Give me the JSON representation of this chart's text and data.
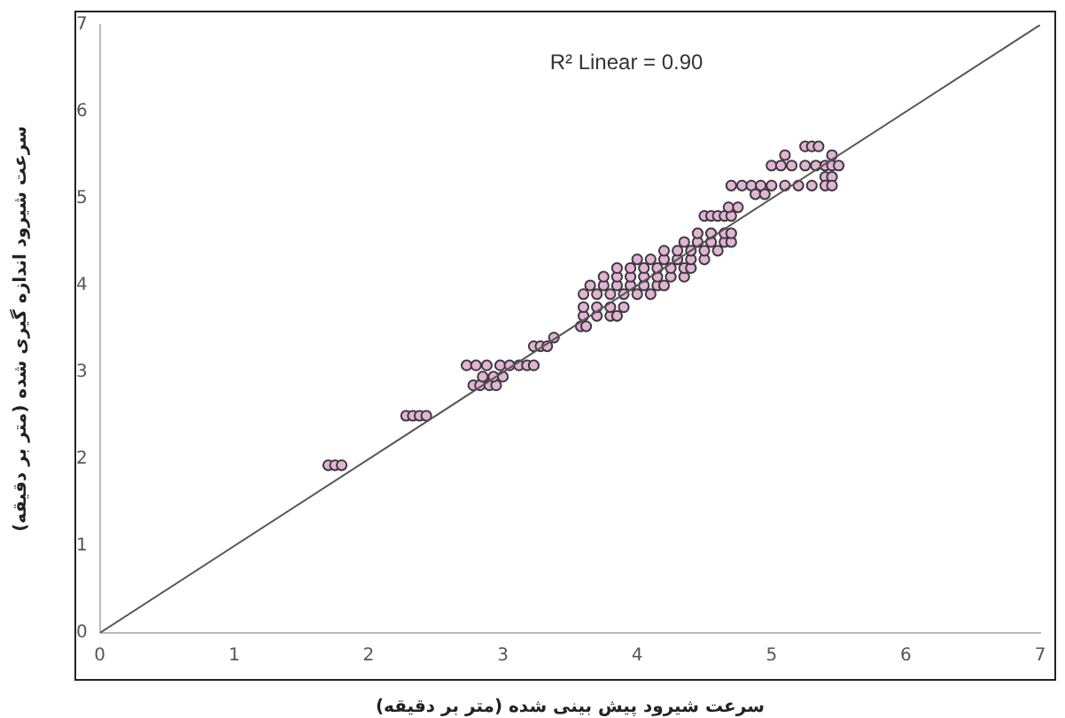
{
  "chart_data": {
    "type": "scatter",
    "xlabel": "سرعت شیرود پیش بینی شده (متر بر دقیقه)",
    "ylabel": "سرعت شیرود اندازه گیری شده (متر بر دقیقه)",
    "annotations": [
      "R² Linear = 0.90"
    ],
    "xlim": [
      0,
      7
    ],
    "xticks": [
      0,
      1,
      2,
      3,
      4,
      5,
      6,
      7
    ],
    "ylim": [
      0,
      7
    ],
    "yticks": [
      0,
      1,
      2,
      3,
      4,
      5,
      6,
      7
    ],
    "grid": false,
    "legend": false,
    "series": [
      {
        "type": "scatter",
        "color": "#e3b3d6",
        "marker": "circle",
        "x": [
          1.7,
          1.75,
          1.8,
          2.28,
          2.33,
          2.38,
          2.43,
          2.73,
          2.8,
          2.88,
          2.98,
          3.05,
          3.12,
          3.18,
          3.23,
          2.78,
          2.83,
          2.9,
          2.95,
          2.85,
          2.93,
          3.0,
          3.23,
          3.28,
          3.33,
          3.38,
          3.58,
          3.62,
          3.6,
          3.7,
          3.8,
          3.85,
          3.6,
          3.7,
          3.8,
          3.9,
          3.6,
          3.7,
          3.8,
          3.9,
          4.0,
          4.1,
          3.65,
          3.75,
          3.85,
          3.95,
          4.05,
          4.15,
          4.2,
          3.75,
          3.85,
          3.95,
          4.05,
          4.15,
          4.25,
          4.35,
          3.85,
          3.95,
          4.05,
          4.15,
          4.25,
          4.35,
          4.4,
          4.0,
          4.1,
          4.2,
          4.3,
          4.4,
          4.5,
          4.2,
          4.3,
          4.4,
          4.5,
          4.6,
          4.35,
          4.45,
          4.55,
          4.65,
          4.7,
          4.45,
          4.55,
          4.65,
          4.7,
          4.5,
          4.55,
          4.6,
          4.65,
          4.7,
          4.68,
          4.75,
          4.7,
          4.78,
          4.85,
          4.92,
          5.0,
          5.1,
          5.2,
          5.3,
          4.88,
          4.95,
          5.0,
          5.07,
          5.15,
          5.25,
          5.33,
          5.4,
          5.45,
          5.5,
          5.4,
          5.45,
          5.4,
          5.45,
          5.1,
          5.45,
          5.25,
          5.3,
          5.35
        ],
        "values": [
          1.93,
          1.93,
          1.93,
          2.5,
          2.5,
          2.5,
          2.5,
          3.08,
          3.08,
          3.08,
          3.08,
          3.08,
          3.08,
          3.08,
          3.08,
          2.85,
          2.85,
          2.85,
          2.85,
          2.95,
          2.95,
          2.95,
          3.3,
          3.3,
          3.3,
          3.4,
          3.53,
          3.53,
          3.65,
          3.65,
          3.65,
          3.65,
          3.75,
          3.75,
          3.75,
          3.75,
          3.9,
          3.9,
          3.9,
          3.9,
          3.9,
          3.9,
          4.0,
          4.0,
          4.0,
          4.0,
          4.0,
          4.0,
          4.0,
          4.1,
          4.1,
          4.1,
          4.1,
          4.1,
          4.1,
          4.1,
          4.2,
          4.2,
          4.2,
          4.2,
          4.2,
          4.2,
          4.2,
          4.3,
          4.3,
          4.3,
          4.3,
          4.3,
          4.3,
          4.4,
          4.4,
          4.4,
          4.4,
          4.4,
          4.5,
          4.5,
          4.5,
          4.5,
          4.5,
          4.6,
          4.6,
          4.6,
          4.6,
          4.8,
          4.8,
          4.8,
          4.8,
          4.8,
          4.9,
          4.9,
          5.15,
          5.15,
          5.15,
          5.15,
          5.15,
          5.15,
          5.15,
          5.15,
          5.05,
          5.05,
          5.38,
          5.38,
          5.38,
          5.38,
          5.38,
          5.38,
          5.38,
          5.38,
          5.25,
          5.25,
          5.15,
          5.15,
          5.5,
          5.5,
          5.6,
          5.6,
          5.6
        ]
      },
      {
        "type": "line",
        "color": "#555555",
        "x": [
          0,
          7
        ],
        "values": [
          0,
          7
        ]
      }
    ]
  }
}
